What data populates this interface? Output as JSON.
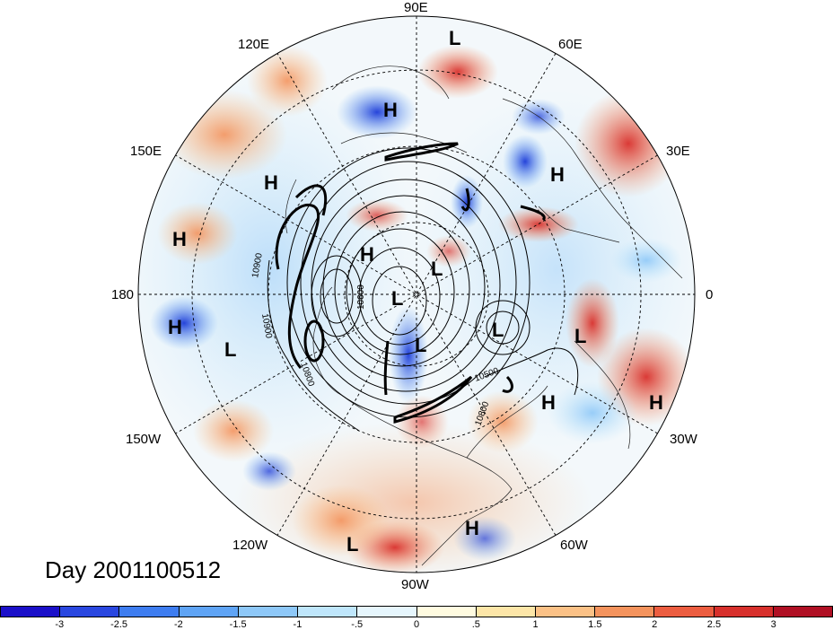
{
  "map": {
    "projection": "north-polar-stereographic",
    "longitude_labels": {
      "top": "90E",
      "upper_right_1": "60E",
      "upper_right_2": "30E",
      "right": "0",
      "lower_right_1": "30W",
      "lower_right_2": "60W",
      "bottom": "90W",
      "lower_left_1": "120W",
      "lower_left_2": "150W",
      "left": "180",
      "upper_left_2": "150E",
      "upper_left_1": "120E"
    },
    "pressure_centers": [
      {
        "label": "L"
      },
      {
        "label": "H"
      },
      {
        "label": "H"
      },
      {
        "label": "H"
      },
      {
        "label": "H"
      },
      {
        "label": "H"
      },
      {
        "label": "H"
      },
      {
        "label": "L"
      },
      {
        "label": "L"
      },
      {
        "label": "L"
      },
      {
        "label": "L"
      },
      {
        "label": "L"
      },
      {
        "label": "L"
      },
      {
        "label": "H"
      },
      {
        "label": "H"
      },
      {
        "label": "H"
      },
      {
        "label": "L"
      }
    ],
    "contour_labels": [
      "10900",
      "10900",
      "10800",
      "10500",
      "10800",
      "10600"
    ],
    "title": "Day 2001100512"
  },
  "colorbar": {
    "colors": [
      "#1b10c9",
      "#2a47e0",
      "#3e7df0",
      "#5fa4f5",
      "#8ec8f8",
      "#bfe6fb",
      "#e6f6fd",
      "#fffbe0",
      "#fde6a8",
      "#fbc186",
      "#f4935d",
      "#ec5d40",
      "#d7302c",
      "#b01024"
    ],
    "ticks": [
      "-3",
      "-2.5",
      "-2",
      "-1.5",
      "-1",
      "-.5",
      "0",
      ".5",
      "1",
      "1.5",
      "2",
      "2.5",
      "3"
    ]
  }
}
